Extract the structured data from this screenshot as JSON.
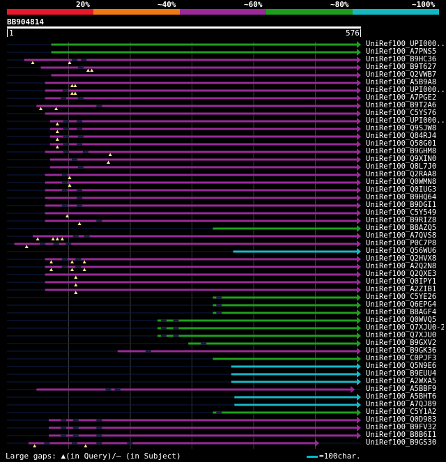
{
  "legend": {
    "labels": [
      "20%",
      "~40%",
      "~60%",
      "~80%",
      "~100%"
    ],
    "colors": [
      "#e6182c",
      "#ee7a16",
      "#9a2a9a",
      "#1e9e1e",
      "#14b8c0"
    ]
  },
  "query": {
    "id": "BB904814",
    "start": "1",
    "end": "576",
    "length": 576
  },
  "footer": {
    "gaps_text": "Large gaps: ▲(in Query)/– (in Subject)",
    "scale_text": "=100char."
  },
  "hits": [
    {
      "name": "UniRef100_UPI000..",
      "color": "green",
      "start": 72,
      "end": 576,
      "q": [],
      "gaps": []
    },
    {
      "name": "UniRef100_A7PNS5",
      "color": "green",
      "start": 72,
      "end": 576,
      "q": [],
      "gaps": []
    },
    {
      "name": "UniRef100_B9HC36",
      "color": "purple",
      "start": 28,
      "end": 576,
      "q": [
        42,
        102
      ],
      "gaps": [
        110,
        125
      ]
    },
    {
      "name": "UniRef100_B9T627",
      "color": "purple",
      "start": 55,
      "end": 576,
      "q": [
        132,
        138
      ],
      "gaps": [
        120
      ]
    },
    {
      "name": "UniRef100_Q2VWB7",
      "color": "purple",
      "start": 72,
      "end": 576,
      "q": [],
      "gaps": []
    },
    {
      "name": "UniRef100_A5B9A8",
      "color": "purple",
      "start": 62,
      "end": 576,
      "q": [
        106,
        111
      ],
      "gaps": []
    },
    {
      "name": "UniRef100_UPI000..",
      "color": "purple",
      "start": 62,
      "end": 576,
      "q": [
        106,
        111
      ],
      "gaps": [
        95
      ]
    },
    {
      "name": "UniRef100_A7PGE2",
      "color": "purple",
      "start": 62,
      "end": 576,
      "q": [],
      "gaps": [
        92,
        120
      ]
    },
    {
      "name": "UniRef100_B9T2A6",
      "color": "purple",
      "start": 48,
      "end": 576,
      "q": [
        55,
        80
      ],
      "gaps": [
        150
      ]
    },
    {
      "name": "UniRef100_C5YS76",
      "color": "purple",
      "start": 62,
      "end": 576,
      "q": [],
      "gaps": []
    },
    {
      "name": "UniRef100_UPI000..",
      "color": "purple",
      "start": 70,
      "end": 576,
      "q": [
        82
      ],
      "gaps": [
        96,
        118
      ]
    },
    {
      "name": "UniRef100_Q9SJW8",
      "color": "purple",
      "start": 70,
      "end": 576,
      "q": [
        82
      ],
      "gaps": [
        96,
        118
      ]
    },
    {
      "name": "UniRef100_Q84RJ4",
      "color": "purple",
      "start": 70,
      "end": 576,
      "q": [
        82
      ],
      "gaps": [
        96,
        120
      ]
    },
    {
      "name": "UniRef100_Q58G01",
      "color": "purple",
      "start": 70,
      "end": 576,
      "q": [
        82
      ],
      "gaps": [
        96,
        118
      ]
    },
    {
      "name": "UniRef100_B9GHM8",
      "color": "purple",
      "start": 62,
      "end": 576,
      "q": [
        168
      ],
      "gaps": [
        96,
        128
      ]
    },
    {
      "name": "UniRef100_Q9XIN0",
      "color": "purple",
      "start": 70,
      "end": 576,
      "q": [
        165
      ],
      "gaps": [
        110
      ]
    },
    {
      "name": "UniRef100_Q8L7J0",
      "color": "purple",
      "start": 70,
      "end": 576,
      "q": [],
      "gaps": [
        120
      ]
    },
    {
      "name": "UniRef100_Q2RAA8",
      "color": "purple",
      "start": 62,
      "end": 576,
      "q": [
        102
      ],
      "gaps": [
        94
      ]
    },
    {
      "name": "UniRef100_Q0WMN8",
      "color": "purple",
      "start": 62,
      "end": 576,
      "q": [
        102
      ],
      "gaps": [
        94
      ]
    },
    {
      "name": "UniRef100_Q0IUG3",
      "color": "purple",
      "start": 62,
      "end": 576,
      "q": [],
      "gaps": [
        94,
        118
      ]
    },
    {
      "name": "UniRef100_B9HQ64",
      "color": "purple",
      "start": 62,
      "end": 576,
      "q": [],
      "gaps": [
        118
      ]
    },
    {
      "name": "UniRef100_B9DGI1",
      "color": "purple",
      "start": 62,
      "end": 576,
      "q": [],
      "gaps": [
        94,
        118
      ]
    },
    {
      "name": "UniRef100_C5Y549",
      "color": "purple",
      "start": 62,
      "end": 576,
      "q": [
        98
      ],
      "gaps": []
    },
    {
      "name": "UniRef100_B9RIZ8",
      "color": "purple",
      "start": 62,
      "end": 576,
      "q": [
        118
      ],
      "gaps": [
        150
      ]
    },
    {
      "name": "UniRef100_B8AZQ5",
      "color": "green",
      "start": 335,
      "end": 576,
      "q": [],
      "gaps": []
    },
    {
      "name": "UniRef100_A7QVS8",
      "color": "purple",
      "start": 42,
      "end": 576,
      "q": [
        50,
        75,
        82,
        90
      ],
      "gaps": [
        112,
        130
      ]
    },
    {
      "name": "UniRef100_P0C7P8",
      "color": "purple",
      "start": 12,
      "end": 576,
      "q": [
        32
      ],
      "gaps": [
        58,
        80,
        100
      ]
    },
    {
      "name": "UniRef100_Q56WU6",
      "color": "cyan",
      "start": 368,
      "end": 576,
      "q": [],
      "gaps": []
    },
    {
      "name": "UniRef100_Q2HVX8",
      "color": "purple",
      "start": 62,
      "end": 576,
      "q": [
        72,
        106,
        126
      ],
      "gaps": [
        94,
        116
      ]
    },
    {
      "name": "UniRef100_A2Q2N8",
      "color": "purple",
      "start": 62,
      "end": 576,
      "q": [
        72,
        106,
        126
      ],
      "gaps": [
        94,
        116
      ]
    },
    {
      "name": "UniRef100_Q2QXE3",
      "color": "purple",
      "start": 62,
      "end": 576,
      "q": [
        112
      ],
      "gaps": []
    },
    {
      "name": "UniRef100_Q0IPY1",
      "color": "purple",
      "start": 62,
      "end": 576,
      "q": [
        112
      ],
      "gaps": []
    },
    {
      "name": "UniRef100_A2ZIB1",
      "color": "purple",
      "start": 62,
      "end": 576,
      "q": [
        112
      ],
      "gaps": []
    },
    {
      "name": "UniRef100_C5YE26",
      "color": "green",
      "start": 335,
      "end": 576,
      "q": [],
      "gaps": [
        345
      ]
    },
    {
      "name": "UniRef100_Q6EPG4",
      "color": "green",
      "start": 335,
      "end": 576,
      "q": [],
      "gaps": [
        345
      ]
    },
    {
      "name": "UniRef100_B8AGF4",
      "color": "green",
      "start": 335,
      "end": 576,
      "q": [],
      "gaps": [
        345
      ]
    },
    {
      "name": "UniRef100_Q0WVQ5",
      "color": "green",
      "start": 245,
      "end": 576,
      "q": [],
      "gaps": [
        255,
        275
      ]
    },
    {
      "name": "UniRef100_Q7XJU0-2",
      "color": "green",
      "start": 245,
      "end": 576,
      "q": [],
      "gaps": [
        255,
        275
      ]
    },
    {
      "name": "UniRef100_Q7XJU0",
      "color": "green",
      "start": 245,
      "end": 576,
      "q": [],
      "gaps": [
        255,
        275
      ]
    },
    {
      "name": "UniRef100_B9GXV2",
      "color": "green",
      "start": 295,
      "end": 576,
      "q": [],
      "gaps": [
        320
      ]
    },
    {
      "name": "UniRef100_B9GK36",
      "color": "purple",
      "start": 180,
      "end": 576,
      "q": [],
      "gaps": [
        230
      ]
    },
    {
      "name": "UniRef100_C0PJF3",
      "color": "green",
      "start": 335,
      "end": 576,
      "q": [],
      "gaps": []
    },
    {
      "name": "UniRef100_Q5N9E6",
      "color": "cyan",
      "start": 365,
      "end": 576,
      "q": [],
      "gaps": []
    },
    {
      "name": "UniRef100_B9EUU4",
      "color": "cyan",
      "start": 365,
      "end": 576,
      "q": [],
      "gaps": []
    },
    {
      "name": "UniRef100_A2WXA5",
      "color": "cyan",
      "start": 365,
      "end": 576,
      "q": [],
      "gaps": []
    },
    {
      "name": "UniRef100_A5BBF9",
      "color": "purple",
      "start": 48,
      "end": 566,
      "q": [],
      "gaps": [
        165,
        180
      ]
    },
    {
      "name": "UniRef100_A5BHT6",
      "color": "cyan",
      "start": 370,
      "end": 576,
      "q": [],
      "gaps": []
    },
    {
      "name": "UniRef100_A7QJ89",
      "color": "cyan",
      "start": 370,
      "end": 576,
      "q": [],
      "gaps": []
    },
    {
      "name": "UniRef100_C5Y1A2",
      "color": "green",
      "start": 335,
      "end": 576,
      "q": [],
      "gaps": [
        345
      ]
    },
    {
      "name": "UniRef100_Q0D983",
      "color": "purple",
      "start": 68,
      "end": 576,
      "q": [],
      "gaps": [
        92,
        112,
        150
      ]
    },
    {
      "name": "UniRef100_B9FV32",
      "color": "purple",
      "start": 68,
      "end": 576,
      "q": [],
      "gaps": [
        92,
        112,
        150
      ]
    },
    {
      "name": "UniRef100_B8B6I1",
      "color": "purple",
      "start": 68,
      "end": 576,
      "q": [],
      "gaps": [
        92,
        112,
        150
      ]
    },
    {
      "name": "UniRef100_B9GS30",
      "color": "purple",
      "start": 35,
      "end": 508,
      "q": [
        45,
        128
      ],
      "gaps": [
        65,
        110,
        150,
        200
      ]
    }
  ]
}
